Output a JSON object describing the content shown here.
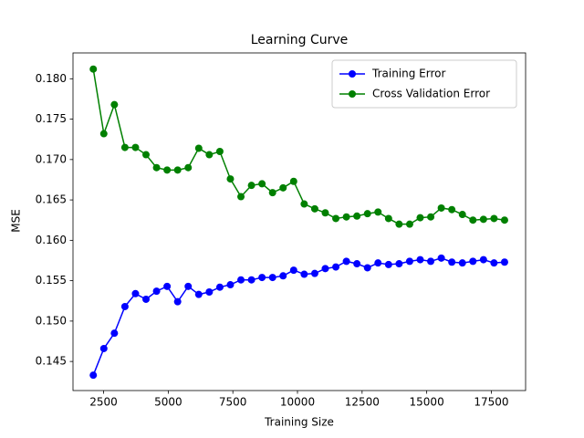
{
  "chart_data": {
    "type": "line",
    "title": "Learning Curve",
    "x_label": "Training Size",
    "y_label": "MSE",
    "x": [
      2100,
      2508,
      2916,
      3324,
      3732,
      4140,
      4548,
      4956,
      5364,
      5772,
      6180,
      6588,
      6996,
      7404,
      7812,
      8220,
      8628,
      9036,
      9444,
      9852,
      10260,
      10668,
      11076,
      11484,
      11892,
      12300,
      12708,
      13116,
      13524,
      13932,
      14340,
      14748,
      15156,
      15564,
      15972,
      16380,
      16788,
      17196,
      17604,
      18012
    ],
    "series": [
      {
        "name": "Training Error",
        "color": "#0000ff",
        "values": [
          0.1433,
          0.1466,
          0.1485,
          0.1518,
          0.1534,
          0.1527,
          0.1537,
          0.1543,
          0.1524,
          0.1543,
          0.1533,
          0.1536,
          0.1542,
          0.1545,
          0.1551,
          0.1551,
          0.1554,
          0.1554,
          0.1556,
          0.1563,
          0.1558,
          0.1559,
          0.1565,
          0.1567,
          0.1574,
          0.1571,
          0.1566,
          0.1572,
          0.157,
          0.1571,
          0.1574,
          0.1576,
          0.1574,
          0.1578,
          0.1573,
          0.1572,
          0.1574,
          0.1576,
          0.1572,
          0.1573
        ]
      },
      {
        "name": "Cross Validation Error",
        "color": "#008000",
        "values": [
          0.1812,
          0.1732,
          0.1768,
          0.1715,
          0.1715,
          0.1706,
          0.169,
          0.1687,
          0.1687,
          0.169,
          0.1714,
          0.1706,
          0.171,
          0.1676,
          0.1654,
          0.1668,
          0.167,
          0.1659,
          0.1665,
          0.1673,
          0.1645,
          0.1639,
          0.1634,
          0.1627,
          0.1629,
          0.163,
          0.1633,
          0.1635,
          0.1627,
          0.162,
          0.162,
          0.1628,
          0.1629,
          0.164,
          0.1638,
          0.1632,
          0.1625,
          0.1626,
          0.1627,
          0.1625
        ]
      }
    ],
    "xlim": [
      1315,
      18826
    ],
    "ylim": [
      0.1414,
      0.1832
    ],
    "xticks": [
      2500,
      5000,
      7500,
      10000,
      12500,
      15000,
      17500
    ],
    "yticks": [
      0.145,
      {
        "value": 0.15,
        "label": "0.150"
      },
      0.155,
      {
        "value": 0.16,
        "label": "0.160"
      },
      0.165,
      {
        "value": 0.17,
        "label": "0.170"
      },
      0.175,
      {
        "value": 0.18,
        "label": "0.180"
      }
    ],
    "legend": "upper right",
    "grid": false
  }
}
